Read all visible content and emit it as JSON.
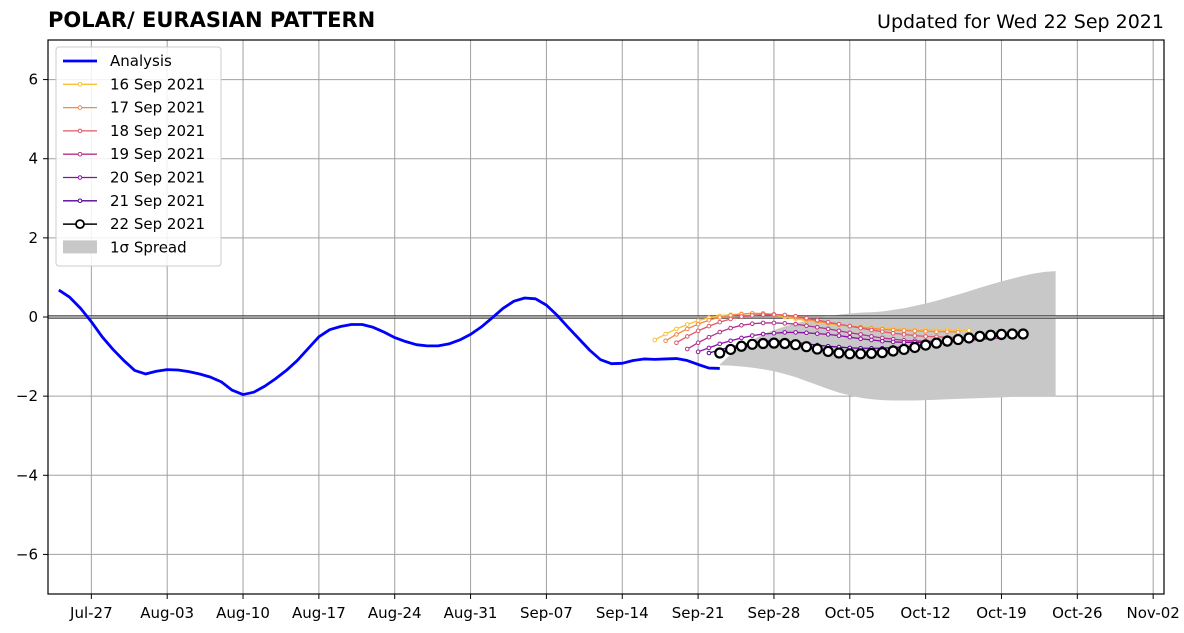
{
  "chart_data": {
    "type": "line",
    "title": "POLAR/ EURASIAN  PATTERN",
    "subtitle": "Updated for Wed 22 Sep 2021",
    "xlabel": "",
    "ylabel": "",
    "ylim": [
      -7,
      7
    ],
    "yticks": [
      6,
      4,
      2,
      0,
      -2,
      -4,
      -6
    ],
    "ytick_labels": [
      "6",
      "4",
      "2",
      "0",
      "−2",
      "−4",
      "−6"
    ],
    "xlim": [
      "2021-07-23",
      "2021-11-03"
    ],
    "xticks": [
      "2021-07-27",
      "2021-08-03",
      "2021-08-10",
      "2021-08-17",
      "2021-08-24",
      "2021-08-31",
      "2021-09-07",
      "2021-09-14",
      "2021-09-21",
      "2021-09-28",
      "2021-10-05",
      "2021-10-12",
      "2021-10-19",
      "2021-10-26",
      "2021-11-02"
    ],
    "xtick_labels": [
      "Jul-27",
      "Aug-03",
      "Aug-10",
      "Aug-17",
      "Aug-24",
      "Aug-31",
      "Sep-07",
      "Sep-14",
      "Sep-21",
      "Sep-28",
      "Oct-05",
      "Oct-12",
      "Oct-19",
      "Oct-26",
      "Nov-02"
    ],
    "grid": true,
    "legend_position": "top-left",
    "analysis": {
      "name": "Analysis",
      "color": "#0000ff",
      "start": "2021-07-24",
      "values": [
        0.68,
        0.5,
        0.22,
        -0.12,
        -0.5,
        -0.82,
        -1.1,
        -1.35,
        -1.44,
        -1.37,
        -1.33,
        -1.34,
        -1.38,
        -1.44,
        -1.52,
        -1.64,
        -1.85,
        -1.96,
        -1.9,
        -1.75,
        -1.56,
        -1.35,
        -1.1,
        -0.8,
        -0.5,
        -0.32,
        -0.24,
        -0.19,
        -0.19,
        -0.26,
        -0.38,
        -0.52,
        -0.62,
        -0.7,
        -0.73,
        -0.73,
        -0.68,
        -0.58,
        -0.44,
        -0.25,
        -0.02,
        0.22,
        0.4,
        0.48,
        0.46,
        0.3,
        0.04,
        -0.26,
        -0.55,
        -0.84,
        -1.08,
        -1.18,
        -1.17,
        -1.1,
        -1.06,
        -1.07,
        -1.06,
        -1.05,
        -1.1,
        -1.2,
        -1.29,
        -1.3
      ]
    },
    "forecasts": [
      {
        "name": "16 Sep 2021",
        "color": "#f8c13a",
        "start": "2021-09-17",
        "values": [
          -0.58,
          -0.43,
          -0.3,
          -0.19,
          -0.09,
          -0.02,
          0.03,
          0.06,
          0.08,
          0.09,
          0.08,
          0.05,
          0.0,
          -0.05,
          -0.09,
          -0.13,
          -0.17,
          -0.2,
          -0.23,
          -0.25,
          -0.27,
          -0.28,
          -0.3,
          -0.31,
          -0.32,
          -0.33,
          -0.33,
          -0.33,
          -0.34,
          -0.34
        ]
      },
      {
        "name": "17 Sep 2021",
        "color": "#f48946",
        "start": "2021-09-18",
        "values": [
          -0.6,
          -0.44,
          -0.3,
          -0.18,
          -0.08,
          -0.01,
          0.04,
          0.07,
          0.09,
          0.09,
          0.07,
          0.04,
          -0.01,
          -0.06,
          -0.1,
          -0.15,
          -0.19,
          -0.23,
          -0.26,
          -0.29,
          -0.31,
          -0.33,
          -0.34,
          -0.35,
          -0.36,
          -0.37,
          -0.37,
          -0.38
        ]
      },
      {
        "name": "18 Sep 2021",
        "color": "#e0576a",
        "start": "2021-09-19",
        "values": [
          -0.65,
          -0.49,
          -0.35,
          -0.23,
          -0.13,
          -0.05,
          0.01,
          0.04,
          0.06,
          0.06,
          0.05,
          0.02,
          -0.03,
          -0.08,
          -0.13,
          -0.18,
          -0.23,
          -0.28,
          -0.33,
          -0.37,
          -0.41,
          -0.44,
          -0.47,
          -0.49,
          -0.5,
          -0.51,
          -0.52,
          -0.53,
          -0.53,
          -0.53
        ]
      },
      {
        "name": "19 Sep 2021",
        "color": "#b6308b",
        "start": "2021-09-20",
        "values": [
          -0.81,
          -0.65,
          -0.51,
          -0.38,
          -0.28,
          -0.21,
          -0.17,
          -0.15,
          -0.15,
          -0.16,
          -0.18,
          -0.22,
          -0.26,
          -0.3,
          -0.35,
          -0.4,
          -0.44,
          -0.49,
          -0.53,
          -0.56,
          -0.59,
          -0.6,
          -0.61,
          -0.61,
          -0.61,
          -0.6,
          -0.59,
          -0.57,
          -0.55,
          -0.53
        ]
      },
      {
        "name": "20 Sep 2021",
        "color": "#8a10a1",
        "start": "2021-09-21",
        "values": [
          -0.88,
          -0.78,
          -0.68,
          -0.6,
          -0.53,
          -0.47,
          -0.43,
          -0.41,
          -0.39,
          -0.39,
          -0.4,
          -0.42,
          -0.44,
          -0.47,
          -0.51,
          -0.55,
          -0.58,
          -0.61,
          -0.63,
          -0.64,
          -0.64,
          -0.64,
          -0.63,
          -0.62,
          -0.6,
          -0.58,
          -0.56,
          -0.54
        ]
      },
      {
        "name": "21 Sep 2021",
        "color": "#520098",
        "start": "2021-09-22",
        "values": [
          -0.91,
          -0.83,
          -0.76,
          -0.7,
          -0.65,
          -0.61,
          -0.6,
          -0.61,
          -0.64,
          -0.68,
          -0.71,
          -0.74,
          -0.76,
          -0.78,
          -0.79,
          -0.79,
          -0.79,
          -0.77,
          -0.76,
          -0.73,
          -0.7,
          -0.67,
          -0.64,
          -0.6,
          -0.57,
          -0.53,
          -0.5,
          -0.48
        ]
      },
      {
        "name": "22 Sep 2021",
        "color": "#000000",
        "start": "2021-09-23",
        "values": [
          -0.91,
          -0.82,
          -0.74,
          -0.69,
          -0.67,
          -0.66,
          -0.67,
          -0.7,
          -0.75,
          -0.81,
          -0.87,
          -0.91,
          -0.93,
          -0.93,
          -0.92,
          -0.9,
          -0.86,
          -0.82,
          -0.77,
          -0.71,
          -0.66,
          -0.61,
          -0.57,
          -0.53,
          -0.49,
          -0.46,
          -0.44,
          -0.43,
          -0.43
        ]
      }
    ],
    "spread": {
      "name": "1σ Spread",
      "color": "#c8c8c8",
      "start": "2021-09-23",
      "upper": [
        -1.2,
        -0.95,
        -0.74,
        -0.58,
        -0.44,
        -0.33,
        -0.24,
        -0.16,
        -0.09,
        -0.03,
        0.02,
        0.06,
        0.09,
        0.11,
        0.12,
        0.14,
        0.18,
        0.22,
        0.28,
        0.34,
        0.41,
        0.49,
        0.57,
        0.65,
        0.74,
        0.82,
        0.9,
        0.97,
        1.04,
        1.1,
        1.14,
        1.16
      ],
      "lower": [
        -1.22,
        -1.23,
        -1.25,
        -1.28,
        -1.32,
        -1.37,
        -1.44,
        -1.52,
        -1.62,
        -1.72,
        -1.82,
        -1.91,
        -1.98,
        -2.04,
        -2.08,
        -2.1,
        -2.11,
        -2.11,
        -2.11,
        -2.1,
        -2.09,
        -2.08,
        -2.07,
        -2.06,
        -2.05,
        -2.04,
        -2.03,
        -2.02,
        -2.02,
        -2.02,
        -2.02,
        -2.02
      ]
    }
  }
}
